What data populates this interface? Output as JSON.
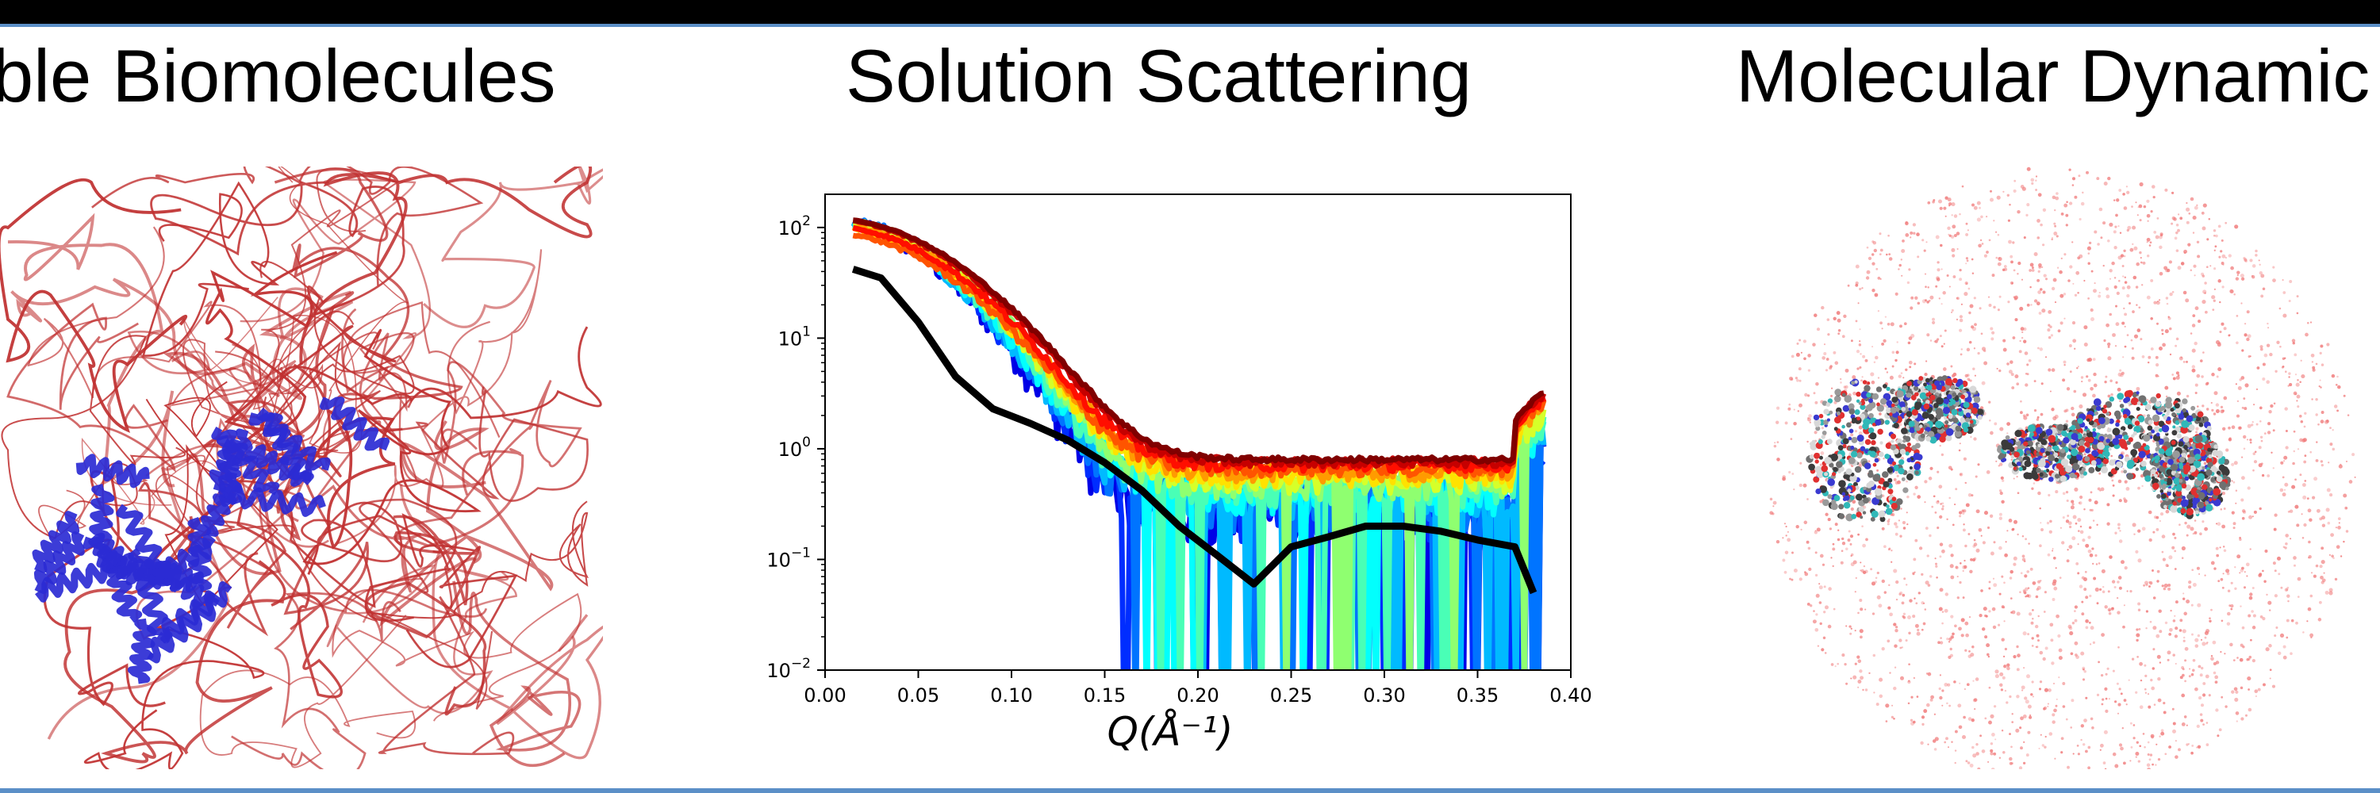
{
  "panels": {
    "left": {
      "title": "xible Biomolecules"
    },
    "middle": {
      "title": "Solution Scattering"
    },
    "right": {
      "title": "Molecular Dynamic"
    }
  },
  "colors": {
    "frame_line": "#5b8fc7",
    "protein_flexible": "#c03030",
    "protein_core": "#2b2bd4",
    "water": "#f07878",
    "experiment_curve": "#000000"
  },
  "chart_data": {
    "type": "line",
    "xlabel": "Q(Å⁻¹)",
    "ylabel": "",
    "title": "",
    "xlim": [
      0.0,
      0.4
    ],
    "ylim_log10": [
      -2,
      2.3
    ],
    "log_y": true,
    "x_ticks": [
      "0.00",
      "0.05",
      "0.10",
      "0.15",
      "0.20",
      "0.25",
      "0.30",
      "0.35",
      "0.40"
    ],
    "y_ticks": [
      {
        "base": "10",
        "exp": "2"
      },
      {
        "base": "10",
        "exp": "1"
      },
      {
        "base": "10",
        "exp": "0"
      },
      {
        "base": "10",
        "exp": "−1"
      },
      {
        "base": "10",
        "exp": "−2"
      }
    ],
    "series_colormap": "jet",
    "ensemble_count": 14,
    "ensemble_I0_range": [
      90,
      130
    ],
    "reference_curve": {
      "color": "#000000",
      "x": [
        0.015,
        0.03,
        0.05,
        0.07,
        0.09,
        0.11,
        0.13,
        0.15,
        0.17,
        0.19,
        0.21,
        0.23,
        0.25,
        0.27,
        0.29,
        0.31,
        0.33,
        0.35,
        0.37,
        0.38
      ],
      "y": [
        42,
        35,
        14,
        4.5,
        2.3,
        1.7,
        1.2,
        0.75,
        0.42,
        0.2,
        0.11,
        0.06,
        0.13,
        0.16,
        0.2,
        0.2,
        0.18,
        0.15,
        0.13,
        0.05
      ]
    }
  }
}
